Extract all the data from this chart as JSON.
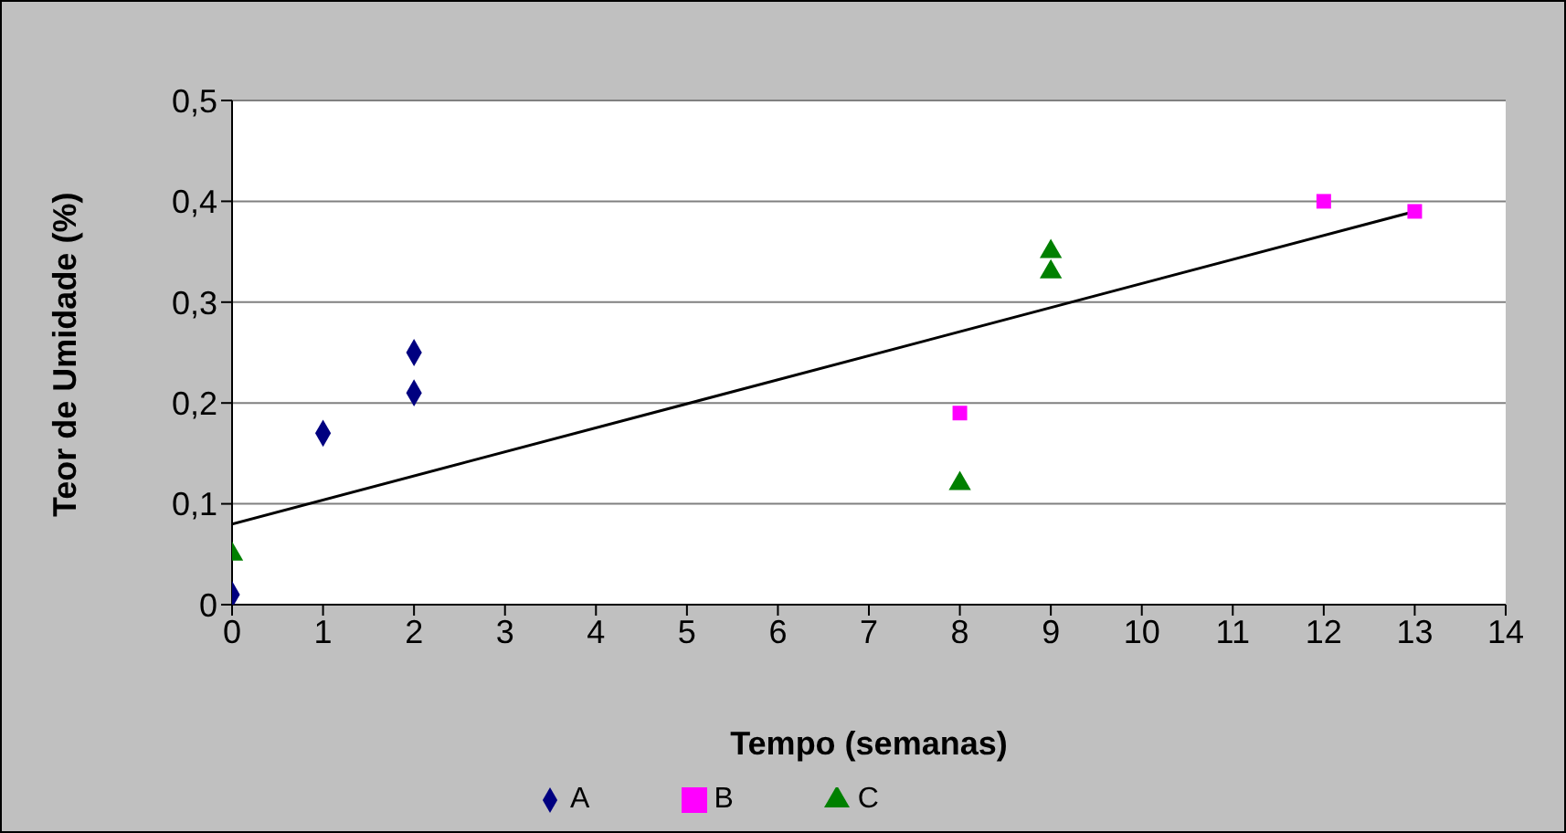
{
  "chart_data": {
    "type": "scatter",
    "xlabel": "Tempo (semanas)",
    "ylabel": "Teor de Umidade (%)",
    "xlim": [
      0,
      14
    ],
    "xticks": [
      0,
      1,
      2,
      3,
      4,
      5,
      6,
      7,
      8,
      9,
      10,
      11,
      12,
      13,
      14
    ],
    "ylim": [
      0,
      0.5
    ],
    "yticks": [
      {
        "value": 0,
        "label": "0"
      },
      {
        "value": 0.1,
        "label": "0,1"
      },
      {
        "value": 0.2,
        "label": "0,2"
      },
      {
        "value": 0.3,
        "label": "0,3"
      },
      {
        "value": 0.4,
        "label": "0,4"
      },
      {
        "value": 0.5,
        "label": "0,5"
      }
    ],
    "grid": "y",
    "legend": "bottom",
    "series": [
      {
        "name": "A",
        "color": "#000080",
        "marker": "diamond",
        "x": [
          0,
          1,
          2,
          2
        ],
        "values": [
          0.01,
          0.17,
          0.25,
          0.21
        ]
      },
      {
        "name": "B",
        "color": "#ff00ff",
        "marker": "square",
        "x": [
          8,
          12,
          13
        ],
        "values": [
          0.19,
          0.4,
          0.39
        ]
      },
      {
        "name": "C",
        "color": "#008000",
        "marker": "triangle",
        "x": [
          0,
          8,
          9,
          9
        ],
        "values": [
          0.05,
          0.12,
          0.35,
          0.33
        ]
      },
      {
        "type": "line",
        "color": "#000000",
        "marker": "none",
        "x": [
          0,
          13
        ],
        "values": [
          0.08,
          0.39
        ]
      }
    ]
  }
}
